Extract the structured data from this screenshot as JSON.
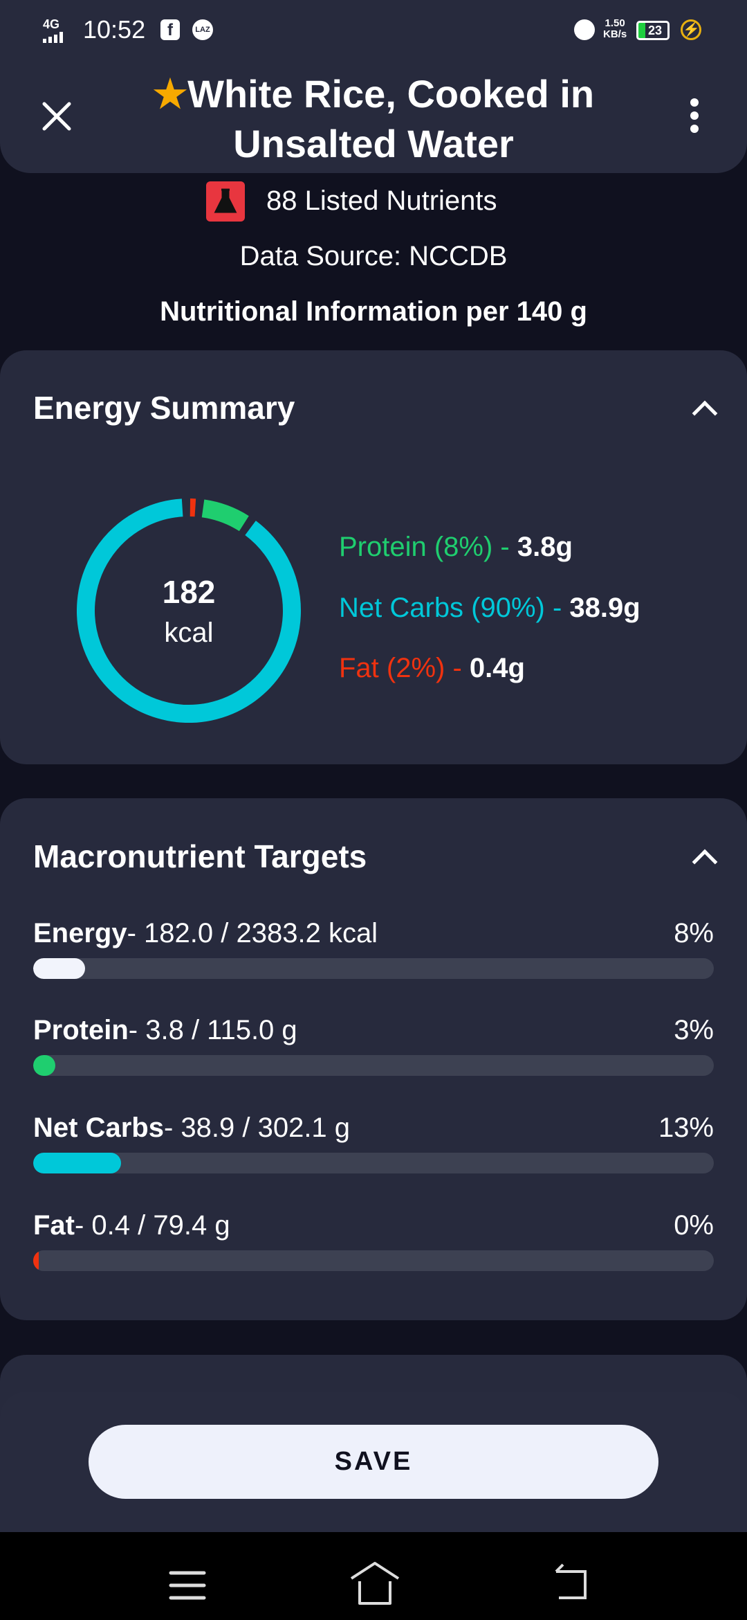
{
  "status_bar": {
    "network": "4G",
    "time": "10:52",
    "speed": "1.50",
    "speed_unit": "KB/s",
    "battery": "23",
    "icons": [
      "facebook-icon",
      "lazada-icon",
      "alarm-icon",
      "battery-icon",
      "charging-icon"
    ]
  },
  "header": {
    "title": "White Rice, Cooked in Unsalted Water",
    "favorite": true,
    "close_icon": "close-icon",
    "menu_icon": "more-vert-icon"
  },
  "info": {
    "nutrients_count": "88 Listed Nutrients",
    "data_source": "Data Source: NCCDB",
    "per_serving": "Nutritional Information per 140 g"
  },
  "energy_summary": {
    "title": "Energy Summary",
    "kcal": "182",
    "kcal_unit": "kcal",
    "legend": [
      {
        "label": "Protein (8%)",
        "sep": " - ",
        "value": "3.8g",
        "color": "#1fce6f",
        "percent": 8
      },
      {
        "label": "Net Carbs (90%)",
        "sep": " - ",
        "value": "38.9g",
        "color": "#00c8d9",
        "percent": 90
      },
      {
        "label": "Fat (2%)",
        "sep": " - ",
        "value": "0.4g",
        "color": "#f0320f",
        "percent": 2
      }
    ]
  },
  "macro_targets": {
    "title": "Macronutrient Targets",
    "rows": [
      {
        "name": "Energy",
        "detail": "- 182.0 / 2383.2 kcal",
        "percent_label": "8%",
        "fraction": 0.076,
        "color": "#f2f4fc"
      },
      {
        "name": "Protein",
        "detail": "- 3.8 / 115.0 g",
        "percent_label": "3%",
        "fraction": 0.033,
        "color": "#1fce6f"
      },
      {
        "name": "Net Carbs",
        "detail": "- 38.9 / 302.1 g",
        "percent_label": "13%",
        "fraction": 0.129,
        "color": "#00c8d9"
      },
      {
        "name": "Fat",
        "detail": "- 0.4 / 79.4 g",
        "percent_label": "0%",
        "fraction": 0.005,
        "color": "#f0320f"
      }
    ]
  },
  "save_label": "SAVE"
}
